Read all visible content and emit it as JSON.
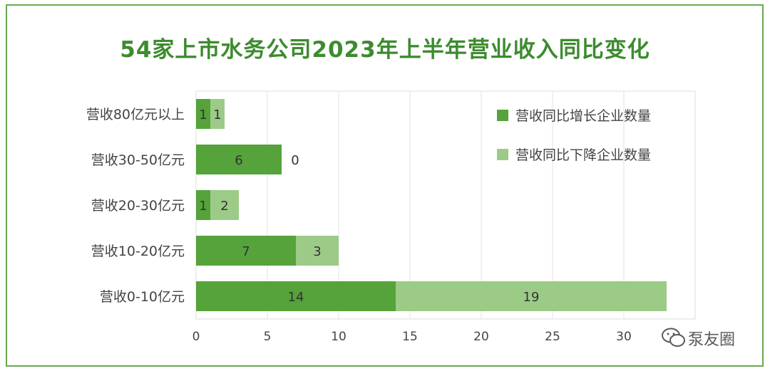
{
  "title": "54家上市水务公司2023年上半年营业收入同比变化",
  "watermark": "泵友圈",
  "colors": {
    "frame": "#6aa84f",
    "title": "#3d8b2f",
    "increase": "#55a33a",
    "decrease": "#9ccb87"
  },
  "chart_data": {
    "type": "bar",
    "orientation": "horizontal",
    "stacked": true,
    "categories": [
      "营收80亿元以上",
      "营收30-50亿元",
      "营收20-30亿元",
      "营收10-20亿元",
      "营收0-10亿元"
    ],
    "series": [
      {
        "name": "营收同比增长企业数量",
        "values": [
          1,
          6,
          1,
          7,
          14
        ],
        "labels": [
          "1",
          "6",
          "1",
          "7",
          "14"
        ]
      },
      {
        "name": "营收同比下降企业数量",
        "values": [
          1,
          0,
          2,
          3,
          19
        ],
        "labels": [
          "1",
          "0",
          "2",
          "3",
          "19"
        ]
      }
    ],
    "xlim": [
      0,
      35
    ],
    "xticks": [
      "0",
      "5",
      "10",
      "15",
      "20",
      "25",
      "30"
    ],
    "grid": true,
    "legend": "top-right"
  }
}
